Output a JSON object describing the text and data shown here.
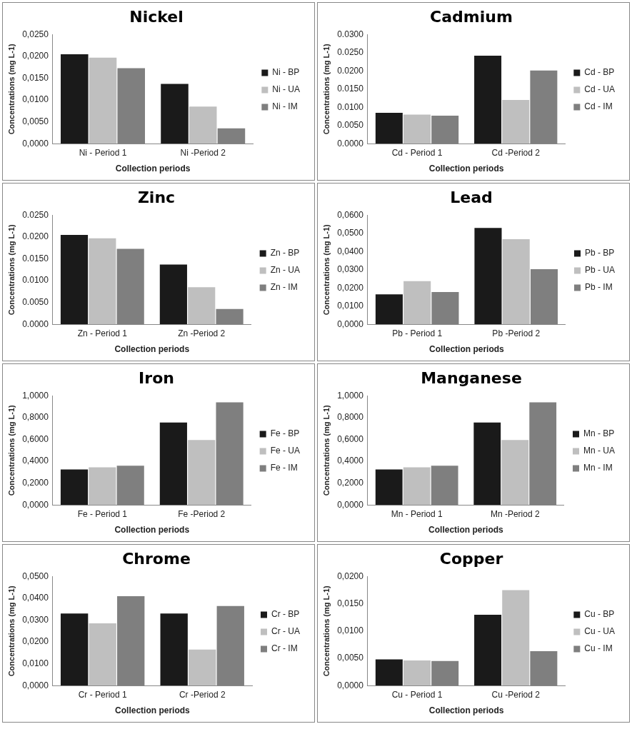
{
  "chart_data": [
    {
      "type": "bar",
      "title": "Nickel",
      "xlabel": "Collection periods",
      "ylabel": "Concentrations (mg L-1)",
      "categories": [
        "Ni - Period 1",
        "Ni -Period 2"
      ],
      "legend": "right",
      "grid": false,
      "ylim": [
        0,
        0.025
      ],
      "yticks": [
        {
          "value": 0,
          "label": "0,0000"
        },
        {
          "value": 0.005,
          "label": "0,0050"
        },
        {
          "value": 0.01,
          "label": "0,0100"
        },
        {
          "value": 0.015,
          "label": "0,0150"
        },
        {
          "value": 0.02,
          "label": "0,0200"
        },
        {
          "value": 0.025,
          "label": "0,0250"
        }
      ],
      "series": [
        {
          "name": "Ni - BP",
          "color": "#1a1a1a",
          "values": [
            0.0205,
            0.0137
          ]
        },
        {
          "name": "Ni - UA",
          "color": "#bfbfbf",
          "values": [
            0.0197,
            0.0085
          ]
        },
        {
          "name": "Ni - IM",
          "color": "#7f7f7f",
          "values": [
            0.0173,
            0.0035
          ]
        }
      ]
    },
    {
      "type": "bar",
      "title": "Cadmium",
      "xlabel": "Collection periods",
      "ylabel": "Concentrations (mg L-1)",
      "categories": [
        "Cd - Period 1",
        "Cd -Period 2"
      ],
      "legend": "right",
      "grid": false,
      "ylim": [
        0,
        0.03
      ],
      "yticks": [
        {
          "value": 0,
          "label": "0.0000"
        },
        {
          "value": 0.005,
          "label": "0.0050"
        },
        {
          "value": 0.01,
          "label": "0.0100"
        },
        {
          "value": 0.015,
          "label": "0.0150"
        },
        {
          "value": 0.02,
          "label": "0.0200"
        },
        {
          "value": 0.025,
          "label": "0.0250"
        },
        {
          "value": 0.03,
          "label": "0.0300"
        }
      ],
      "series": [
        {
          "name": "Cd - BP",
          "color": "#1a1a1a",
          "values": [
            0.0085,
            0.0242
          ]
        },
        {
          "name": "Cd - UA",
          "color": "#bfbfbf",
          "values": [
            0.008,
            0.012
          ]
        },
        {
          "name": "Cd - IM",
          "color": "#7f7f7f",
          "values": [
            0.0077,
            0.0201
          ]
        }
      ]
    },
    {
      "type": "bar",
      "title": "Zinc",
      "xlabel": "Collection periods",
      "ylabel": "Concentrations (mg L-1)",
      "categories": [
        "Zn - Period 1",
        "Zn -Period 2"
      ],
      "legend": "right",
      "grid": false,
      "ylim": [
        0,
        0.025
      ],
      "yticks": [
        {
          "value": 0,
          "label": "0.0000"
        },
        {
          "value": 0.005,
          "label": "0.0050"
        },
        {
          "value": 0.01,
          "label": "0.0100"
        },
        {
          "value": 0.015,
          "label": "0.0150"
        },
        {
          "value": 0.02,
          "label": "0.0200"
        },
        {
          "value": 0.025,
          "label": "0.0250"
        }
      ],
      "series": [
        {
          "name": "Zn - BP",
          "color": "#1a1a1a",
          "values": [
            0.0205,
            0.0137
          ]
        },
        {
          "name": "Zn - UA",
          "color": "#bfbfbf",
          "values": [
            0.0197,
            0.0085
          ]
        },
        {
          "name": "Zn - IM",
          "color": "#7f7f7f",
          "values": [
            0.0173,
            0.0035
          ]
        }
      ]
    },
    {
      "type": "bar",
      "title": "Lead",
      "xlabel": "Collection periods",
      "ylabel": "Concentrations (mg L-1)",
      "categories": [
        "Pb - Period 1",
        "Pb -Period 2"
      ],
      "legend": "right",
      "grid": false,
      "ylim": [
        0,
        0.06
      ],
      "yticks": [
        {
          "value": 0,
          "label": "0,0000"
        },
        {
          "value": 0.01,
          "label": "0,0100"
        },
        {
          "value": 0.02,
          "label": "0,0200"
        },
        {
          "value": 0.03,
          "label": "0,0300"
        },
        {
          "value": 0.04,
          "label": "0,0400"
        },
        {
          "value": 0.05,
          "label": "0,0500"
        },
        {
          "value": 0.06,
          "label": "0,0600"
        }
      ],
      "series": [
        {
          "name": "Pb - BP",
          "color": "#1a1a1a",
          "values": [
            0.0165,
            0.053
          ]
        },
        {
          "name": "Pb - UA",
          "color": "#bfbfbf",
          "values": [
            0.0237,
            0.0468
          ]
        },
        {
          "name": "Pb - IM",
          "color": "#7f7f7f",
          "values": [
            0.0177,
            0.0303
          ]
        }
      ]
    },
    {
      "type": "bar",
      "title": "Iron",
      "xlabel": "Collection periods",
      "ylabel": "Concentrations (mg L-1)",
      "categories": [
        "Fe - Period 1",
        "Fe -Period 2"
      ],
      "legend": "right",
      "grid": false,
      "ylim": [
        0,
        1
      ],
      "yticks": [
        {
          "value": 0,
          "label": "0,0000"
        },
        {
          "value": 0.2,
          "label": "0,2000"
        },
        {
          "value": 0.4,
          "label": "0,4000"
        },
        {
          "value": 0.6,
          "label": "0,6000"
        },
        {
          "value": 0.8,
          "label": "0,8000"
        },
        {
          "value": 1,
          "label": "1,0000"
        }
      ],
      "series": [
        {
          "name": "Fe - BP",
          "color": "#1a1a1a",
          "values": [
            0.325,
            0.755
          ]
        },
        {
          "name": "Fe - UA",
          "color": "#bfbfbf",
          "values": [
            0.345,
            0.595
          ]
        },
        {
          "name": "Fe - IM",
          "color": "#7f7f7f",
          "values": [
            0.36,
            0.94
          ]
        }
      ]
    },
    {
      "type": "bar",
      "title": "Manganese",
      "xlabel": "Collection periods",
      "ylabel": "Concentrations (mg L-1)",
      "categories": [
        "Mn - Period 1",
        "Mn -Period 2"
      ],
      "legend": "right",
      "grid": false,
      "ylim": [
        0,
        1
      ],
      "yticks": [
        {
          "value": 0,
          "label": "0,0000"
        },
        {
          "value": 0.2,
          "label": "0,2000"
        },
        {
          "value": 0.4,
          "label": "0,4000"
        },
        {
          "value": 0.6,
          "label": "0,6000"
        },
        {
          "value": 0.8,
          "label": "0,8000"
        },
        {
          "value": 1,
          "label": "1,0000"
        }
      ],
      "series": [
        {
          "name": "Mn - BP",
          "color": "#1a1a1a",
          "values": [
            0.325,
            0.755
          ]
        },
        {
          "name": "Mn - UA",
          "color": "#bfbfbf",
          "values": [
            0.345,
            0.595
          ]
        },
        {
          "name": "Mn - IM",
          "color": "#7f7f7f",
          "values": [
            0.36,
            0.94
          ]
        }
      ]
    },
    {
      "type": "bar",
      "title": "Chrome",
      "xlabel": "Collection periods",
      "ylabel": "Concentrations (mg L-1)",
      "categories": [
        "Cr - Period 1",
        "Cr -Period 2"
      ],
      "legend": "right",
      "grid": false,
      "ylim": [
        0,
        0.05
      ],
      "yticks": [
        {
          "value": 0,
          "label": "0,0000"
        },
        {
          "value": 0.01,
          "label": "0,0100"
        },
        {
          "value": 0.02,
          "label": "0,0200"
        },
        {
          "value": 0.03,
          "label": "0,0300"
        },
        {
          "value": 0.04,
          "label": "0,0400"
        },
        {
          "value": 0.05,
          "label": "0,0500"
        }
      ],
      "series": [
        {
          "name": "Cr - BP",
          "color": "#1a1a1a",
          "values": [
            0.033,
            0.033
          ]
        },
        {
          "name": "Cr - UA",
          "color": "#bfbfbf",
          "values": [
            0.0285,
            0.0165
          ]
        },
        {
          "name": "Cr - IM",
          "color": "#7f7f7f",
          "values": [
            0.041,
            0.0365
          ]
        }
      ]
    },
    {
      "type": "bar",
      "title": "Copper",
      "xlabel": "Collection periods",
      "ylabel": "Concentrations (mg L-1)",
      "categories": [
        "Cu - Period 1",
        "Cu -Period 2"
      ],
      "legend": "right",
      "grid": false,
      "ylim": [
        0,
        0.02
      ],
      "yticks": [
        {
          "value": 0,
          "label": "0,0000"
        },
        {
          "value": 0.005,
          "label": "0,0050"
        },
        {
          "value": 0.01,
          "label": "0,0100"
        },
        {
          "value": 0.015,
          "label": "0,0150"
        },
        {
          "value": 0.02,
          "label": "0,0200"
        }
      ],
      "series": [
        {
          "name": "Cu - BP",
          "color": "#1a1a1a",
          "values": [
            0.0048,
            0.013
          ]
        },
        {
          "name": "Cu - UA",
          "color": "#bfbfbf",
          "values": [
            0.0046,
            0.0175
          ]
        },
        {
          "name": "Cu - IM",
          "color": "#7f7f7f",
          "values": [
            0.0045,
            0.0063
          ]
        }
      ]
    }
  ]
}
